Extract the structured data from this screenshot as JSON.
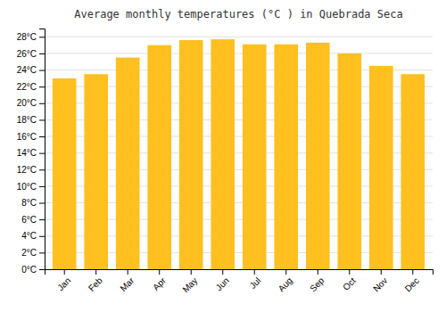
{
  "chart_data": {
    "type": "bar",
    "title": "Average monthly temperatures (°C ) in Quebrada Seca",
    "categories": [
      "Jan",
      "Feb",
      "Mar",
      "Apr",
      "May",
      "Jun",
      "Jul",
      "Aug",
      "Sep",
      "Oct",
      "Nov",
      "Dec"
    ],
    "values": [
      23.0,
      23.5,
      25.5,
      27.0,
      27.6,
      27.7,
      27.1,
      27.1,
      27.3,
      26.0,
      24.5,
      23.5
    ],
    "color": "#FFC020",
    "ylim": [
      0,
      29
    ],
    "yticks": [
      {
        "value": 0,
        "label": "0°C"
      },
      {
        "value": 2,
        "label": "2°C"
      },
      {
        "value": 4,
        "label": "4°C"
      },
      {
        "value": 6,
        "label": "6°C"
      },
      {
        "value": 8,
        "label": "8°C"
      },
      {
        "value": 10,
        "label": "10°C"
      },
      {
        "value": 12,
        "label": "12°C"
      },
      {
        "value": 14,
        "label": "14°C"
      },
      {
        "value": 16,
        "label": "16°C"
      },
      {
        "value": 18,
        "label": "18°C"
      },
      {
        "value": 20,
        "label": "20°C"
      },
      {
        "value": 22,
        "label": "22°C"
      },
      {
        "value": 24,
        "label": "24°C"
      },
      {
        "value": 26,
        "label": "26°C"
      },
      {
        "value": 28,
        "label": "28°C"
      }
    ],
    "grid": true
  }
}
